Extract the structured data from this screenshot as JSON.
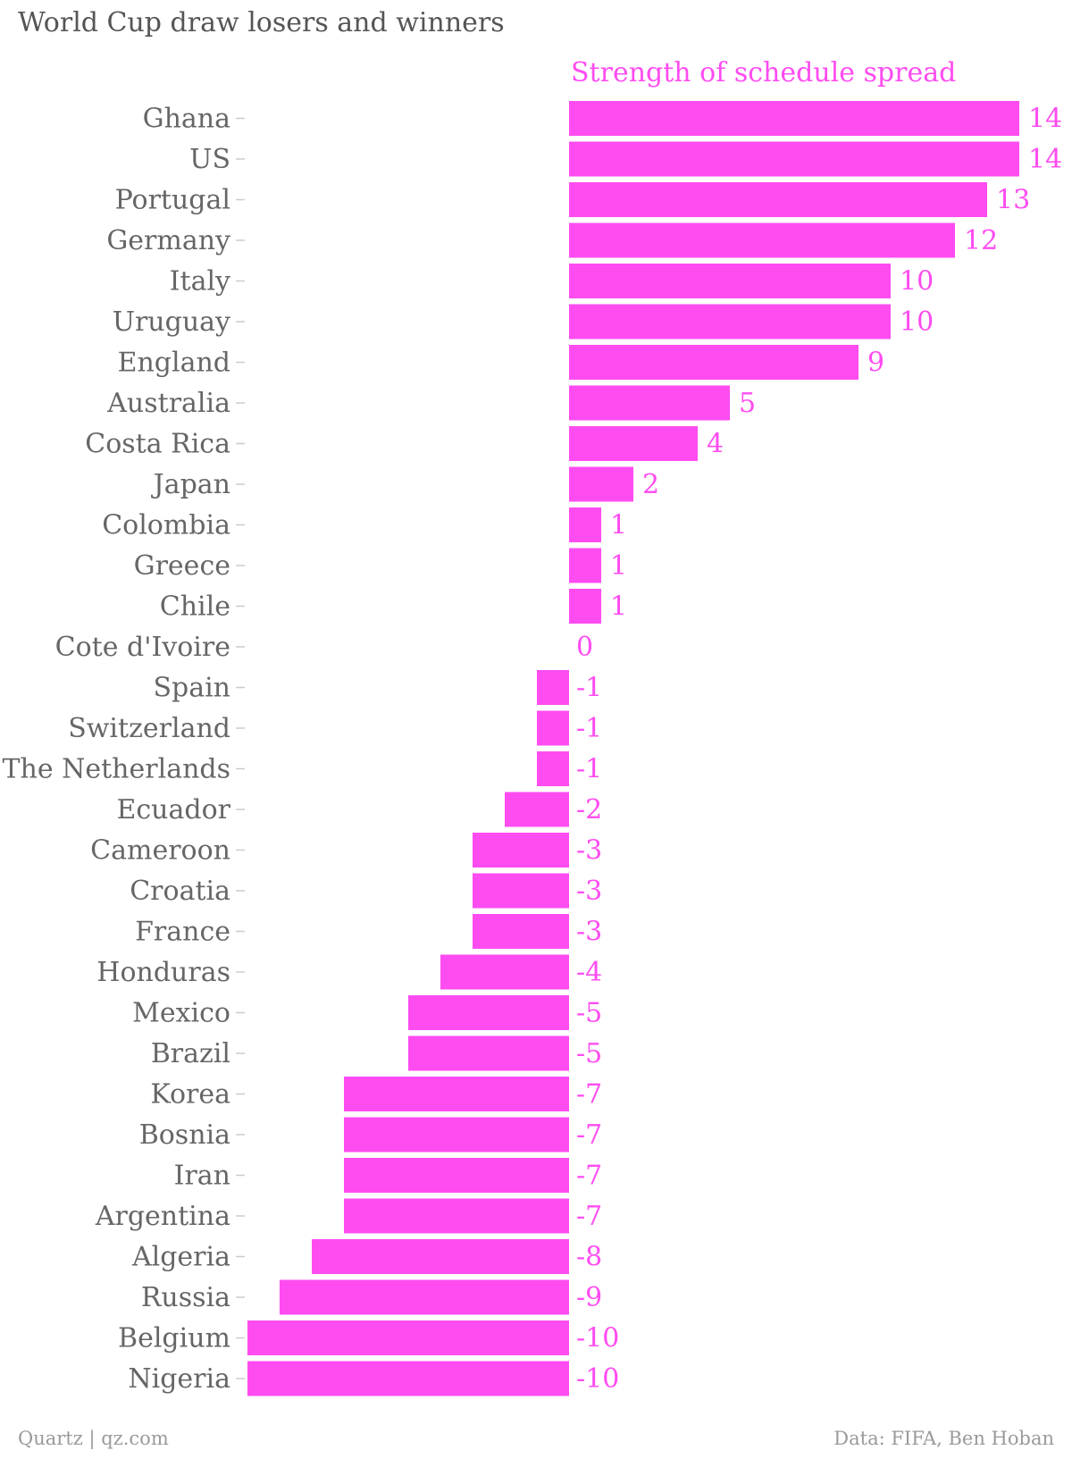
{
  "title": "World Cup draw losers and winners",
  "footer": {
    "source_left": "Quartz | qz.com",
    "source_right": "Data: FIFA, Ben Hoban"
  },
  "colors": {
    "bar": "#ff4cf1",
    "label_text": "#666666",
    "tick": "#cccccc"
  },
  "chart_data": {
    "type": "bar",
    "orientation": "horizontal",
    "series": [
      {
        "name": "Strength of schedule spread",
        "values": [
          14,
          14,
          13,
          12,
          10,
          10,
          9,
          5,
          4,
          2,
          1,
          1,
          1,
          0,
          -1,
          -1,
          -1,
          -2,
          -3,
          -3,
          -3,
          -4,
          -5,
          -5,
          -7,
          -7,
          -7,
          -7,
          -8,
          -9,
          -10,
          -10
        ]
      }
    ],
    "categories": [
      "Ghana",
      "US",
      "Portugal",
      "Germany",
      "Italy",
      "Uruguay",
      "England",
      "Australia",
      "Costa Rica",
      "Japan",
      "Colombia",
      "Greece",
      "Chile",
      "Cote d'Ivoire",
      "Spain",
      "Switzerland",
      "The Netherlands",
      "Ecuador",
      "Cameroon",
      "Croatia",
      "France",
      "Honduras",
      "Mexico",
      "Brazil",
      "Korea",
      "Bosnia",
      "Iran",
      "Argentina",
      "Algeria",
      "Russia",
      "Belgium",
      "Nigeria"
    ],
    "xlim": [
      -10,
      14
    ],
    "data_labels": true,
    "grid": false
  }
}
